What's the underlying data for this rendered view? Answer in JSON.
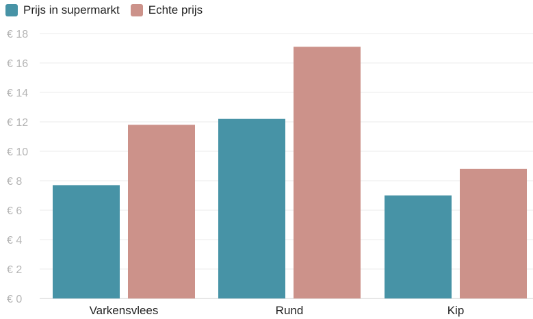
{
  "chart_data": {
    "type": "bar",
    "categories": [
      "Varkensvlees",
      "Rund",
      "Kip"
    ],
    "series": [
      {
        "name": "Prijs in supermarkt",
        "color": "#4793a6",
        "values": [
          7.7,
          12.2,
          7.0
        ]
      },
      {
        "name": "Echte prijs",
        "color": "#cc928a",
        "values": [
          11.8,
          17.1,
          8.8
        ]
      }
    ],
    "yticks": [
      "€ 0",
      "€ 2",
      "€ 4",
      "€ 6",
      "€ 8",
      "€ 10",
      "€ 12",
      "€ 14",
      "€ 16",
      "€ 18"
    ],
    "ylim": [
      0,
      18
    ],
    "grid": true,
    "legend_position": "top-left"
  }
}
